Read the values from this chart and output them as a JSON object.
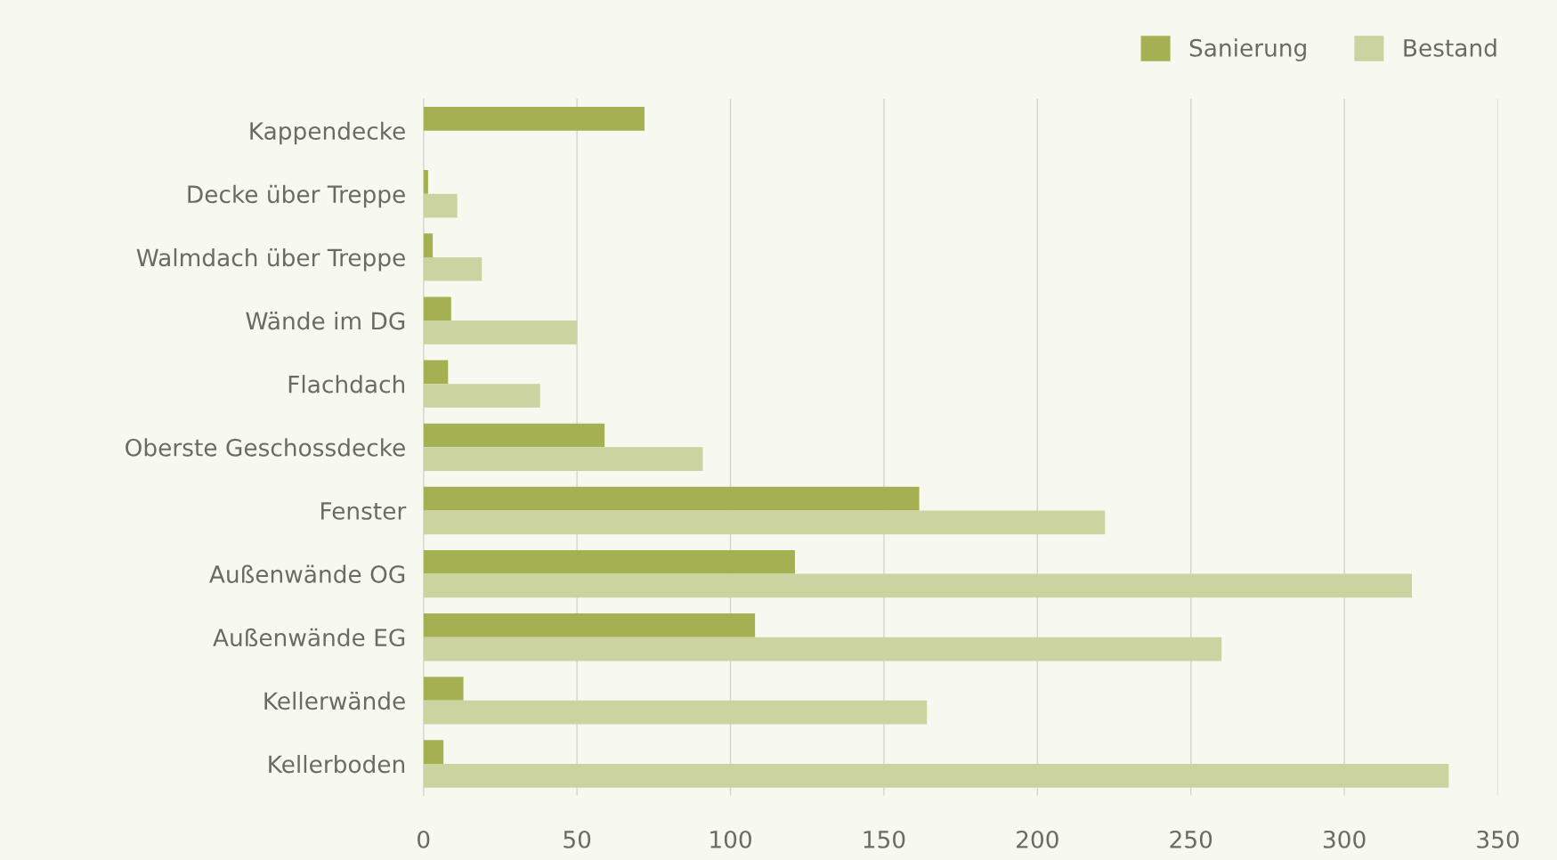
{
  "chart_data": {
    "type": "bar",
    "orientation": "horizontal",
    "categories": [
      "Kappendecke",
      "Decke über Treppe",
      "Walmdach über Treppe",
      "Wände im DG",
      "Flachdach",
      "Oberste Geschossdecke",
      "Fenster",
      "Außenwände OG",
      "Außenwände EG",
      "Kellerwände",
      "Kellerboden"
    ],
    "series": [
      {
        "name": "Sanierung",
        "color": "#a5b052",
        "values": [
          72,
          1.5,
          3,
          9,
          8,
          59,
          161.5,
          121,
          108,
          13,
          6.5
        ]
      },
      {
        "name": "Bestand",
        "color": "#cbd3a0",
        "values": [
          null,
          11,
          19,
          50,
          38,
          91,
          222,
          322,
          260,
          164,
          334
        ]
      }
    ],
    "xlim": [
      0,
      350
    ],
    "xticks": [
      0,
      50,
      100,
      150,
      200,
      250,
      300,
      350
    ],
    "grid": "x",
    "legend": "top right"
  }
}
